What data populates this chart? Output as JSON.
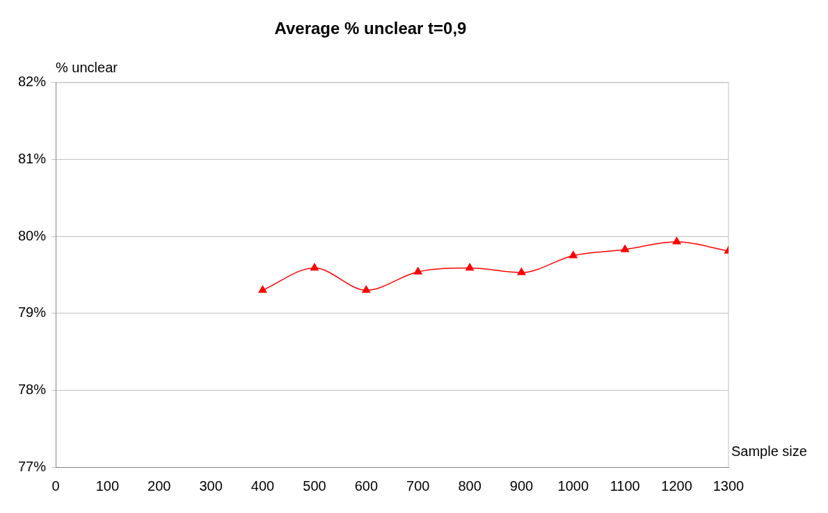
{
  "chart_data": {
    "type": "line",
    "title": "Average % unclear t=0,9",
    "xlabel": "Sample size",
    "ylabel": "% unclear",
    "x": [
      400,
      500,
      600,
      700,
      800,
      900,
      1000,
      1100,
      1200,
      1300
    ],
    "series": [
      {
        "color": "#ff0000",
        "values": [
          79.3,
          79.59,
          79.3,
          79.54,
          79.59,
          79.53,
          79.75,
          79.83,
          79.93,
          79.81
        ]
      }
    ],
    "xlim": [
      0,
      1300
    ],
    "xticks": [
      0,
      100,
      200,
      300,
      400,
      500,
      600,
      700,
      800,
      900,
      1000,
      1100,
      1200,
      1300
    ],
    "ylim": [
      77,
      82
    ],
    "yticks": [
      {
        "value": 77,
        "label": "77%"
      },
      {
        "value": 78,
        "label": "78%"
      },
      {
        "value": 79,
        "label": "79%"
      },
      {
        "value": 80,
        "label": "80%"
      },
      {
        "value": 81,
        "label": "81%"
      },
      {
        "value": 82,
        "label": "82%"
      }
    ],
    "grid": "y",
    "legend": false,
    "marker": "triangle",
    "line_style": "solid"
  }
}
